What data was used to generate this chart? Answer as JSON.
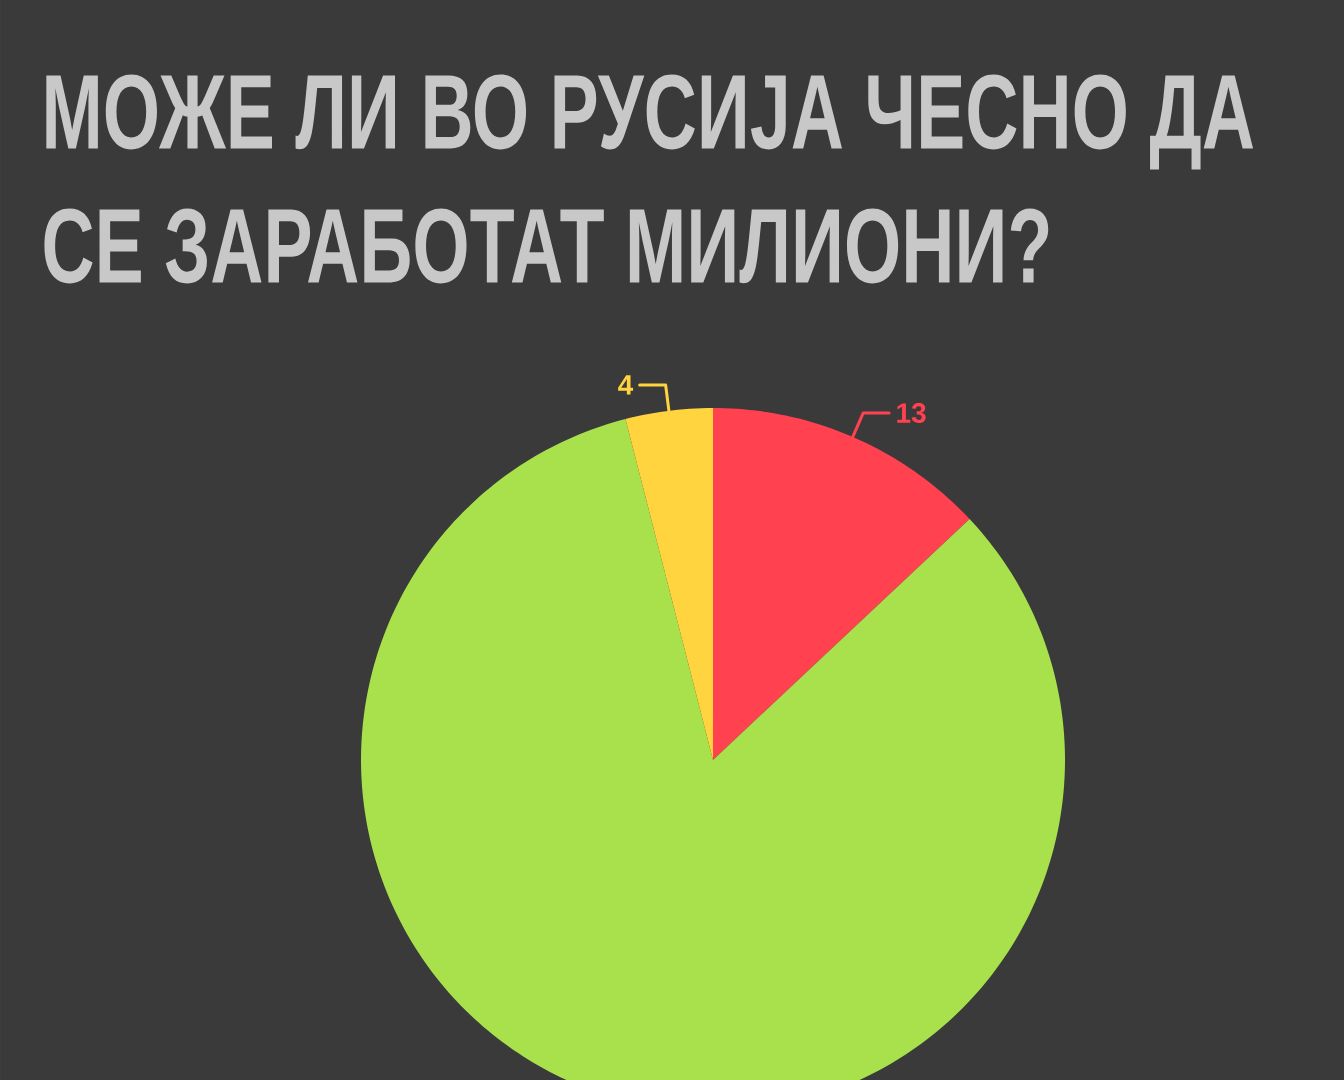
{
  "chart_data": {
    "type": "pie",
    "title": "МОЖЕ ЛИ ВО РУСИЈА ЧЕСНО ДА СЕ ЗАРАБОТАТ МИЛИОНИ?",
    "categories": [
      null,
      null,
      null
    ],
    "values": [
      13,
      83,
      4
    ],
    "colors": [
      "#ff4150",
      "#a8e14c",
      "#ffd43f"
    ],
    "value_labels": [
      "13",
      null,
      "4"
    ]
  }
}
